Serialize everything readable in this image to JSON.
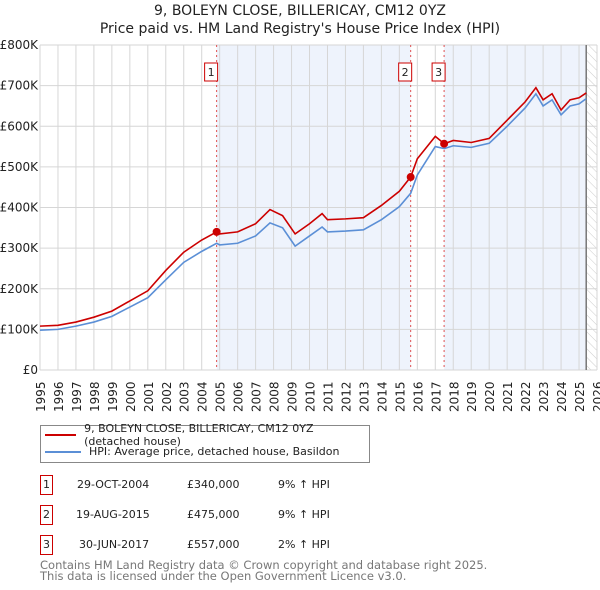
{
  "chart_data": {
    "type": "line",
    "title": "9, BOLEYN CLOSE, BILLERICAY, CM12 0YZ",
    "subtitle": "Price paid vs. HM Land Registry's House Price Index (HPI)",
    "ylim": [
      0,
      800000
    ],
    "xlim": [
      1995,
      2026
    ],
    "y_ticks": [
      {
        "v": 0,
        "label": "£0"
      },
      {
        "v": 100000,
        "label": "£100K"
      },
      {
        "v": 200000,
        "label": "£200K"
      },
      {
        "v": 300000,
        "label": "£300K"
      },
      {
        "v": 400000,
        "label": "£400K"
      },
      {
        "v": 500000,
        "label": "£500K"
      },
      {
        "v": 600000,
        "label": "£600K"
      },
      {
        "v": 700000,
        "label": "£700K"
      },
      {
        "v": 800000,
        "label": "£800K"
      }
    ],
    "x_ticks": [
      "1995",
      "1996",
      "1997",
      "1998",
      "1999",
      "2000",
      "2001",
      "2002",
      "2003",
      "2004",
      "2005",
      "2006",
      "2007",
      "2008",
      "2009",
      "2010",
      "2011",
      "2012",
      "2013",
      "2014",
      "2015",
      "2016",
      "2017",
      "2018",
      "2019",
      "2020",
      "2021",
      "2022",
      "2023",
      "2024",
      "2025",
      "2026"
    ],
    "data_end": 2025.4,
    "series": [
      {
        "name": "9, BOLEYN CLOSE, BILLERICAY, CM12 0YZ (detached house)",
        "color": "#cc0000",
        "x": [
          1995,
          1996,
          1997,
          1998,
          1999,
          2000,
          2001,
          2002,
          2003,
          2004,
          2004.83,
          2005,
          2006,
          2007,
          2007.8,
          2008.5,
          2009.2,
          2010,
          2010.7,
          2011,
          2012,
          2013,
          2014,
          2015,
          2015.63,
          2016,
          2017,
          2017.5,
          2018,
          2019,
          2020,
          2021,
          2022,
          2022.6,
          2023,
          2023.5,
          2024,
          2024.5,
          2025,
          2025.4
        ],
        "y": [
          108000,
          110000,
          118000,
          130000,
          145000,
          170000,
          195000,
          245000,
          290000,
          320000,
          340000,
          335000,
          340000,
          360000,
          395000,
          380000,
          335000,
          360000,
          385000,
          370000,
          372000,
          375000,
          405000,
          440000,
          475000,
          520000,
          575000,
          557000,
          565000,
          560000,
          570000,
          615000,
          660000,
          695000,
          665000,
          680000,
          640000,
          665000,
          670000,
          682000
        ]
      },
      {
        "name": "HPI: Average price, detached house, Basildon",
        "color": "#5b8fd6",
        "x": [
          1995,
          1996,
          1997,
          1998,
          1999,
          2000,
          2001,
          2002,
          2003,
          2004,
          2004.83,
          2005,
          2006,
          2007,
          2007.8,
          2008.5,
          2009.2,
          2010,
          2010.7,
          2011,
          2012,
          2013,
          2014,
          2015,
          2015.63,
          2016,
          2017,
          2017.5,
          2018,
          2019,
          2020,
          2021,
          2022,
          2022.6,
          2023,
          2023.5,
          2024,
          2024.5,
          2025,
          2025.4
        ],
        "y": [
          98000,
          100000,
          108000,
          118000,
          132000,
          155000,
          178000,
          222000,
          265000,
          292000,
          312000,
          308000,
          312000,
          330000,
          362000,
          350000,
          305000,
          330000,
          352000,
          340000,
          342000,
          345000,
          370000,
          402000,
          435000,
          480000,
          550000,
          545000,
          552000,
          548000,
          558000,
          600000,
          645000,
          680000,
          650000,
          665000,
          628000,
          650000,
          655000,
          668000
        ]
      }
    ],
    "sales": [
      {
        "label": "1",
        "x": 2004.83,
        "date": "29-OCT-2004",
        "price": 340000,
        "price_label": "£340,000",
        "hpi": "9% ↑ HPI"
      },
      {
        "label": "2",
        "x": 2015.63,
        "date": "19-AUG-2015",
        "price": 475000,
        "price_label": "£475,000",
        "hpi": "9% ↑ HPI"
      },
      {
        "label": "3",
        "x": 2017.49,
        "date": "30-JUN-2017",
        "price": 557000,
        "price_label": "£557,000",
        "hpi": "2% ↑ HPI"
      }
    ]
  },
  "footer": {
    "line1": "Contains HM Land Registry data © Crown copyright and database right 2025.",
    "line2": "This data is licensed under the Open Government Licence v3.0."
  }
}
